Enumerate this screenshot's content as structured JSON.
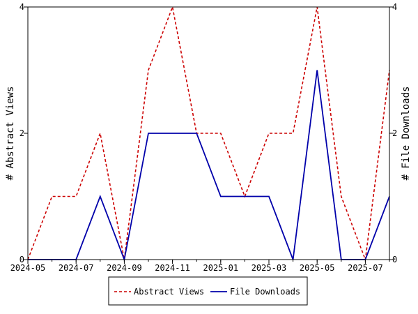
{
  "chart_data": {
    "type": "line",
    "title": "",
    "x": [
      "2024-05",
      "2024-06",
      "2024-07",
      "2024-08",
      "2024-09",
      "2024-10",
      "2024-11",
      "2024-12",
      "2025-01",
      "2025-02",
      "2025-03",
      "2025-04",
      "2025-05",
      "2025-06",
      "2025-07",
      "2025-08"
    ],
    "x_tick_labels": [
      "2024-05",
      "2024-07",
      "2024-09",
      "2024-11",
      "2025-01",
      "2025-03",
      "2025-05",
      "2025-07"
    ],
    "ylabel_left": "# Abstract Views",
    "ylabel_right": "# File Downloads",
    "ylim_left": [
      0,
      4
    ],
    "ylim_right": [
      0,
      4
    ],
    "y_ticks_left": [
      0,
      2,
      4
    ],
    "y_ticks_right": [
      0,
      2,
      4
    ],
    "grid": false,
    "legend_position": "bottom-center",
    "series": [
      {
        "name": "Abstract Views",
        "axis": "left",
        "color": "#cc0000",
        "style": "dashed",
        "values": [
          0,
          1,
          1,
          2,
          0,
          3,
          4,
          2,
          2,
          1,
          2,
          2,
          4,
          1,
          0,
          3
        ]
      },
      {
        "name": "File Downloads",
        "axis": "right",
        "color": "#0000aa",
        "style": "solid",
        "values": [
          0,
          0,
          0,
          1,
          0,
          2,
          2,
          2,
          1,
          1,
          1,
          0,
          3,
          0,
          0,
          1
        ]
      }
    ]
  }
}
